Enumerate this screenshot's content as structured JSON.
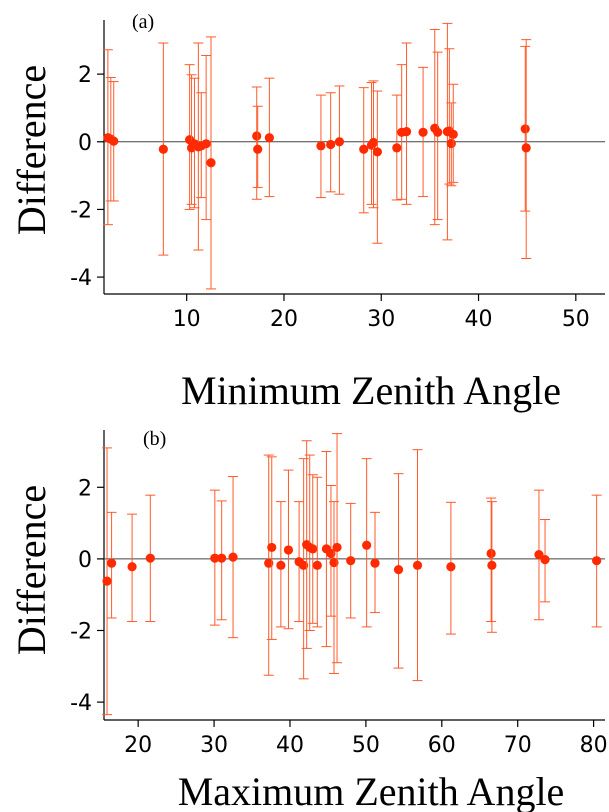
{
  "chart_data": [
    {
      "type": "scatter",
      "panel_label": "(a)",
      "title": "",
      "xlabel": "Minimum Zenith Angle",
      "ylabel": "Difference",
      "xlim": [
        1.5,
        53
      ],
      "ylim": [
        -4.5,
        3.6
      ],
      "xticks": [
        10,
        20,
        30,
        40,
        50
      ],
      "yticks": [
        -4,
        -2,
        0,
        2
      ],
      "grid": false,
      "legend": "none",
      "reference_line_y": 0,
      "marker_color": "#ff2a00",
      "errorbar_color": "#ff5a2a",
      "points": [
        {
          "x": 1.9,
          "y": 0.12,
          "lo": -2.45,
          "hi": 2.72
        },
        {
          "x": 2.2,
          "y": 0.08,
          "lo": -1.75,
          "hi": 1.9
        },
        {
          "x": 2.5,
          "y": 0.02,
          "lo": -1.75,
          "hi": 1.78
        },
        {
          "x": 7.6,
          "y": -0.22,
          "lo": -3.35,
          "hi": 2.92
        },
        {
          "x": 10.3,
          "y": 0.06,
          "lo": -2.0,
          "hi": 2.28
        },
        {
          "x": 10.5,
          "y": -0.18,
          "lo": -1.85,
          "hi": 1.98
        },
        {
          "x": 10.8,
          "y": -0.06,
          "lo": -1.95,
          "hi": 1.88
        },
        {
          "x": 11.2,
          "y": -0.15,
          "lo": -3.2,
          "hi": 2.92
        },
        {
          "x": 11.5,
          "y": -0.12,
          "lo": -1.65,
          "hi": 1.45
        },
        {
          "x": 12.0,
          "y": -0.06,
          "lo": -2.3,
          "hi": 2.55
        },
        {
          "x": 12.5,
          "y": -0.62,
          "lo": -4.35,
          "hi": 3.1
        },
        {
          "x": 17.2,
          "y": 0.17,
          "lo": -1.7,
          "hi": 1.62
        },
        {
          "x": 17.3,
          "y": -0.22,
          "lo": -1.35,
          "hi": 1.05
        },
        {
          "x": 18.5,
          "y": 0.12,
          "lo": -1.62,
          "hi": 1.88
        },
        {
          "x": 23.8,
          "y": -0.12,
          "lo": -1.65,
          "hi": 1.38
        },
        {
          "x": 24.8,
          "y": -0.08,
          "lo": -1.48,
          "hi": 1.45
        },
        {
          "x": 25.7,
          "y": 0.0,
          "lo": -1.55,
          "hi": 1.65
        },
        {
          "x": 28.2,
          "y": -0.22,
          "lo": -2.1,
          "hi": 1.6
        },
        {
          "x": 29.0,
          "y": -0.1,
          "lo": -1.85,
          "hi": 1.75
        },
        {
          "x": 29.2,
          "y": -0.02,
          "lo": -1.95,
          "hi": 1.8
        },
        {
          "x": 29.6,
          "y": -0.3,
          "lo": -3.0,
          "hi": 1.5
        },
        {
          "x": 31.6,
          "y": -0.18,
          "lo": -1.72,
          "hi": 1.38
        },
        {
          "x": 32.1,
          "y": 0.28,
          "lo": -1.7,
          "hi": 2.28
        },
        {
          "x": 32.6,
          "y": 0.3,
          "lo": -1.85,
          "hi": 2.92
        },
        {
          "x": 34.3,
          "y": 0.28,
          "lo": -1.62,
          "hi": 2.2
        },
        {
          "x": 35.5,
          "y": 0.4,
          "lo": -2.45,
          "hi": 3.32
        },
        {
          "x": 35.8,
          "y": 0.28,
          "lo": -2.3,
          "hi": 2.65
        },
        {
          "x": 36.8,
          "y": 0.3,
          "lo": -2.9,
          "hi": 3.5
        },
        {
          "x": 37.0,
          "y": 0.32,
          "lo": -1.25,
          "hi": 2.75
        },
        {
          "x": 37.2,
          "y": -0.05,
          "lo": -1.3,
          "hi": 1.15
        },
        {
          "x": 37.4,
          "y": 0.22,
          "lo": -1.2,
          "hi": 1.7
        },
        {
          "x": 44.8,
          "y": 0.38,
          "lo": -2.05,
          "hi": 2.82
        },
        {
          "x": 44.9,
          "y": -0.18,
          "lo": -3.45,
          "hi": 3.02
        }
      ]
    },
    {
      "type": "scatter",
      "panel_label": "(b)",
      "title": "",
      "xlabel": "Maximum Zenith Angle",
      "ylabel": "Difference",
      "xlim": [
        15.5,
        81.5
      ],
      "ylim": [
        -4.5,
        3.6
      ],
      "xticks": [
        20,
        30,
        40,
        50,
        60,
        70,
        80
      ],
      "yticks": [
        -4,
        -2,
        0,
        2
      ],
      "grid": false,
      "legend": "none",
      "reference_line_y": 0,
      "marker_color": "#ff2a00",
      "errorbar_color": "#ff5a2a",
      "points": [
        {
          "x": 15.9,
          "y": -0.62,
          "lo": -4.35,
          "hi": 3.1
        },
        {
          "x": 16.5,
          "y": -0.12,
          "lo": -1.65,
          "hi": 1.3
        },
        {
          "x": 19.2,
          "y": -0.22,
          "lo": -1.75,
          "hi": 1.25
        },
        {
          "x": 21.6,
          "y": 0.02,
          "lo": -1.75,
          "hi": 1.78
        },
        {
          "x": 30.1,
          "y": 0.02,
          "lo": -1.85,
          "hi": 1.92
        },
        {
          "x": 31.0,
          "y": 0.02,
          "lo": -1.7,
          "hi": 1.62
        },
        {
          "x": 32.5,
          "y": 0.05,
          "lo": -2.2,
          "hi": 2.3
        },
        {
          "x": 37.2,
          "y": -0.12,
          "lo": -3.25,
          "hi": 2.9
        },
        {
          "x": 37.6,
          "y": 0.32,
          "lo": -2.25,
          "hi": 2.85
        },
        {
          "x": 38.8,
          "y": -0.18,
          "lo": -1.9,
          "hi": 1.6
        },
        {
          "x": 39.8,
          "y": 0.25,
          "lo": -1.95,
          "hi": 2.48
        },
        {
          "x": 41.2,
          "y": -0.08,
          "lo": -1.75,
          "hi": 1.6
        },
        {
          "x": 41.8,
          "y": -0.18,
          "lo": -3.35,
          "hi": 2.8
        },
        {
          "x": 42.2,
          "y": 0.4,
          "lo": -2.5,
          "hi": 3.3
        },
        {
          "x": 42.6,
          "y": 0.32,
          "lo": -2.0,
          "hi": 2.9
        },
        {
          "x": 43.0,
          "y": 0.28,
          "lo": -1.8,
          "hi": 2.35
        },
        {
          "x": 43.6,
          "y": -0.18,
          "lo": -1.9,
          "hi": 2.28
        },
        {
          "x": 44.8,
          "y": 0.28,
          "lo": -2.45,
          "hi": 3.0
        },
        {
          "x": 45.4,
          "y": 0.15,
          "lo": -1.6,
          "hi": 2.05
        },
        {
          "x": 45.8,
          "y": -0.1,
          "lo": -3.2,
          "hi": 1.6
        },
        {
          "x": 46.2,
          "y": 0.32,
          "lo": -2.9,
          "hi": 3.5
        },
        {
          "x": 48.0,
          "y": -0.05,
          "lo": -1.65,
          "hi": 1.55
        },
        {
          "x": 50.1,
          "y": 0.38,
          "lo": -1.9,
          "hi": 2.8
        },
        {
          "x": 51.2,
          "y": -0.12,
          "lo": -1.5,
          "hi": 1.3
        },
        {
          "x": 54.3,
          "y": -0.3,
          "lo": -3.05,
          "hi": 2.38
        },
        {
          "x": 56.8,
          "y": -0.18,
          "lo": -3.4,
          "hi": 3.05
        },
        {
          "x": 61.2,
          "y": -0.22,
          "lo": -2.1,
          "hi": 1.58
        },
        {
          "x": 66.5,
          "y": 0.15,
          "lo": -1.75,
          "hi": 1.7
        },
        {
          "x": 66.6,
          "y": -0.18,
          "lo": -2.05,
          "hi": 1.6
        },
        {
          "x": 72.8,
          "y": 0.12,
          "lo": -1.7,
          "hi": 1.92
        },
        {
          "x": 73.6,
          "y": -0.02,
          "lo": -1.2,
          "hi": 1.1
        },
        {
          "x": 80.4,
          "y": -0.05,
          "lo": -1.9,
          "hi": 1.78
        }
      ]
    }
  ]
}
